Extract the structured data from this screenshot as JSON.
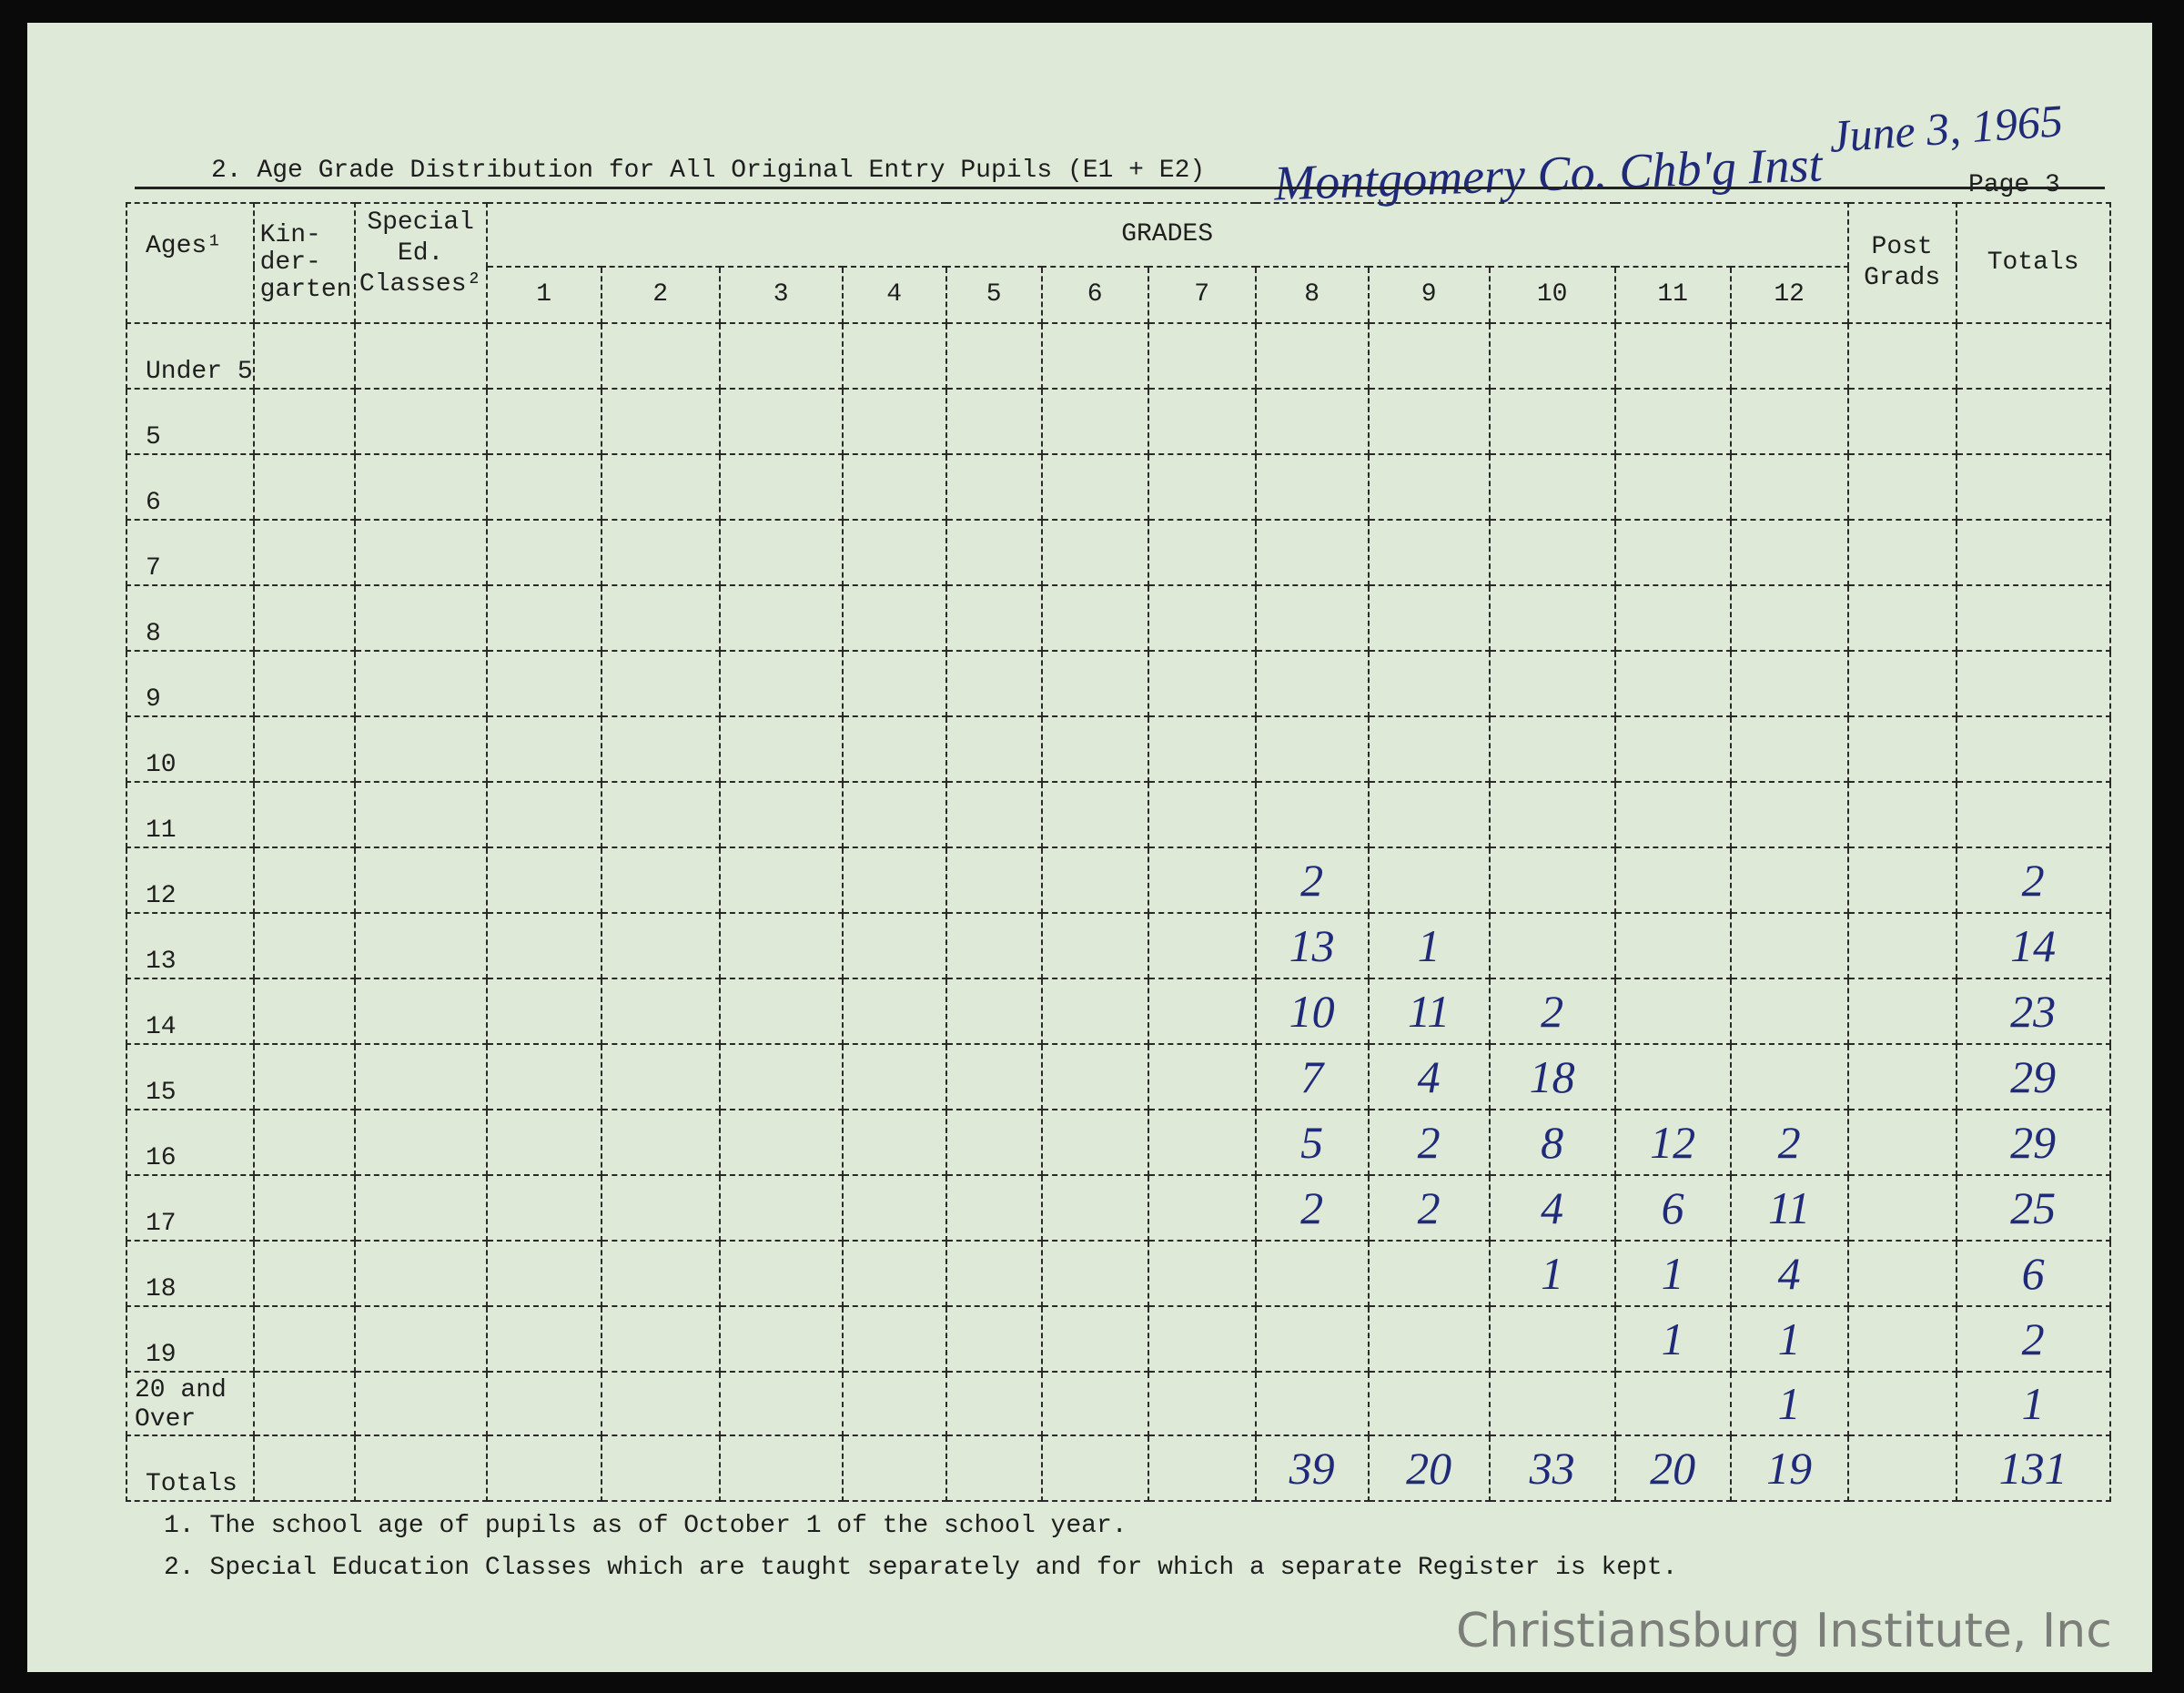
{
  "form": {
    "title": "2. Age Grade Distribution for All Original Entry Pupils (E1 + E2)",
    "school_handwritten": "Montgomery Co. Chb'g Inst",
    "date_handwritten": "June 3, 1965",
    "page": "Page 3"
  },
  "table": {
    "headers": {
      "ages": "Ages¹",
      "kindergarten": "Kin-\nder-\ngarten",
      "special": "Special\nEd.\nClasses²",
      "grades": "GRADES",
      "grade_numbers": [
        "1",
        "2",
        "3",
        "4",
        "5",
        "6",
        "7",
        "8",
        "9",
        "10",
        "11",
        "12"
      ],
      "post_grads": "Post\nGrads",
      "totals": "Totals"
    },
    "columns_note": "values are for grades 8, 9, 10, 11, 12 and Totals",
    "rows": [
      {
        "age": "Under 5",
        "g8": "",
        "g9": "",
        "g10": "",
        "g11": "",
        "g12": "",
        "total": ""
      },
      {
        "age": "5",
        "g8": "",
        "g9": "",
        "g10": "",
        "g11": "",
        "g12": "",
        "total": ""
      },
      {
        "age": "6",
        "g8": "",
        "g9": "",
        "g10": "",
        "g11": "",
        "g12": "",
        "total": ""
      },
      {
        "age": "7",
        "g8": "",
        "g9": "",
        "g10": "",
        "g11": "",
        "g12": "",
        "total": ""
      },
      {
        "age": "8",
        "g8": "",
        "g9": "",
        "g10": "",
        "g11": "",
        "g12": "",
        "total": ""
      },
      {
        "age": "9",
        "g8": "",
        "g9": "",
        "g10": "",
        "g11": "",
        "g12": "",
        "total": ""
      },
      {
        "age": "10",
        "g8": "",
        "g9": "",
        "g10": "",
        "g11": "",
        "g12": "",
        "total": ""
      },
      {
        "age": "11",
        "g8": "",
        "g9": "",
        "g10": "",
        "g11": "",
        "g12": "",
        "total": ""
      },
      {
        "age": "12",
        "g8": "2",
        "g9": "",
        "g10": "",
        "g11": "",
        "g12": "",
        "total": "2"
      },
      {
        "age": "13",
        "g8": "13",
        "g9": "1",
        "g10": "",
        "g11": "",
        "g12": "",
        "total": "14"
      },
      {
        "age": "14",
        "g8": "10",
        "g9": "11",
        "g10": "2",
        "g11": "",
        "g12": "",
        "total": "23"
      },
      {
        "age": "15",
        "g8": "7",
        "g9": "4",
        "g10": "18",
        "g11": "",
        "g12": "",
        "total": "29"
      },
      {
        "age": "16",
        "g8": "5",
        "g9": "2",
        "g10": "8",
        "g11": "12",
        "g12": "2",
        "total": "29"
      },
      {
        "age": "17",
        "g8": "2",
        "g9": "2",
        "g10": "4",
        "g11": "6",
        "g12": "11",
        "total": "25"
      },
      {
        "age": "18",
        "g8": "",
        "g9": "",
        "g10": "1",
        "g11": "1",
        "g12": "4",
        "total": "6"
      },
      {
        "age": "19",
        "g8": "",
        "g9": "",
        "g10": "",
        "g11": "1",
        "g12": "1",
        "total": "2"
      },
      {
        "age": "20 and\nOver",
        "g8": "",
        "g9": "",
        "g10": "",
        "g11": "",
        "g12": "1",
        "total": "1"
      },
      {
        "age": "Totals",
        "g8": "39",
        "g9": "20",
        "g10": "33",
        "g11": "20",
        "g12": "19",
        "total": "131"
      }
    ]
  },
  "footnotes": [
    "1. The school age of pupils as of October 1 of the school year.",
    "2. Special Education Classes which are taught separately and for which a separate Register is kept."
  ],
  "watermark": "Christiansburg Institute, Inc"
}
